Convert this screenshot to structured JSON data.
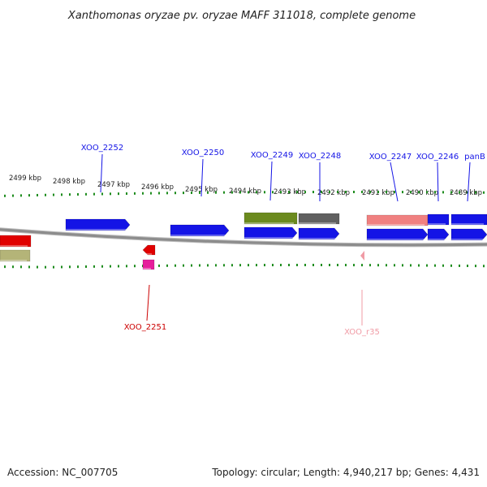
{
  "title": "Xanthomonas oryzae pv. oryzae MAFF 311018, complete genome",
  "footer": {
    "accession": "Accession: NC_007705",
    "topology": "Topology: circular; Length: 4,940,217 bp; Genes: 4,431"
  },
  "colors": {
    "backbone": "#8c8c8c",
    "ticks": "#1e8c1e",
    "cds_forward": "#1414e6",
    "cds_reverse": "#e60000",
    "trna": "#e61e9b",
    "rrna": "#f09ba5",
    "leader_forward": "#1414e6",
    "leader_reverse": "#cc0000",
    "leader_rna": "#f09ba5"
  },
  "scale_labels": [
    "2499 kbp",
    "2498 kbp",
    "2497 kbp",
    "2496 kbp",
    "2495 kbp",
    "2494 kbp",
    "2493 kbp",
    "2492 kbp",
    "2491 kbp",
    "2490 kbp",
    "2489 kbp"
  ],
  "gene_labels": {
    "XOO_2252": "XOO_2252",
    "XOO_2250": "XOO_2250",
    "XOO_2249": "XOO_2249",
    "XOO_2248": "XOO_2248",
    "XOO_2247": "XOO_2247",
    "XOO_2246": "XOO_2246",
    "panB": "panB",
    "XOO_2251": "XOO_2251",
    "XOO_r35": "XOO_r35"
  }
}
